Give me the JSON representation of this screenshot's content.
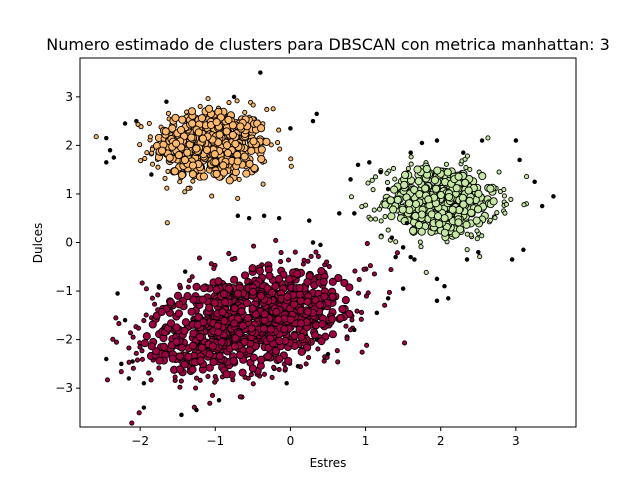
{
  "chart_data": {
    "type": "scatter",
    "title": "Numero estimado de clusters para DBSCAN con metrica manhattan: 3",
    "xlabel": "Estres",
    "ylabel": "Dulces",
    "xlim": [
      -2.8,
      3.8
    ],
    "ylim": [
      -3.8,
      3.8
    ],
    "xticks": [
      -2,
      -1,
      0,
      1,
      2,
      3
    ],
    "xtick_labels": [
      "−2",
      "−1",
      "0",
      "1",
      "2",
      "3"
    ],
    "yticks": [
      -3,
      -2,
      -1,
      0,
      1,
      2,
      3
    ],
    "ytick_labels": [
      "−3",
      "−2",
      "−1",
      "0",
      "1",
      "2",
      "3"
    ],
    "grid": false,
    "legend": "none",
    "clusters": [
      {
        "color": "#fdb96b",
        "center": [
          -1.05,
          2.0
        ],
        "spread": [
          0.38,
          0.38
        ],
        "count": 520,
        "core_size": 6,
        "border_size": 3
      },
      {
        "color": "#c7e8a5",
        "center": [
          2.0,
          0.85
        ],
        "spread": [
          0.38,
          0.38
        ],
        "count": 470,
        "core_size": 6,
        "border_size": 3
      },
      {
        "color": "#9e0142",
        "center": [
          -0.55,
          -1.6
        ],
        "spread": [
          0.75,
          0.5
        ],
        "count": 980,
        "core_size": 6,
        "border_size": 3,
        "rotation_deg": 30
      }
    ],
    "noise": {
      "color": "#000000",
      "size": 3,
      "points": [
        [
          -2.45,
          2.15
        ],
        [
          -2.4,
          1.9
        ],
        [
          -2.35,
          1.75
        ],
        [
          -2.2,
          2.45
        ],
        [
          -2.05,
          2.5
        ],
        [
          -2.45,
          1.65
        ],
        [
          -1.85,
          1.4
        ],
        [
          -1.65,
          2.9
        ],
        [
          0.0,
          2.35
        ],
        [
          0.35,
          2.65
        ],
        [
          0.3,
          2.5
        ],
        [
          -0.4,
          3.5
        ],
        [
          -0.15,
          0.5
        ],
        [
          -0.35,
          0.55
        ],
        [
          -0.55,
          0.5
        ],
        [
          -0.7,
          0.55
        ],
        [
          0.25,
          0.45
        ],
        [
          -0.75,
          3.0
        ],
        [
          0.65,
          0.6
        ],
        [
          0.85,
          0.6
        ],
        [
          1.05,
          1.65
        ],
        [
          0.9,
          1.6
        ],
        [
          0.8,
          1.3
        ],
        [
          1.2,
          1.45
        ],
        [
          1.3,
          1.1
        ],
        [
          1.55,
          0.4
        ],
        [
          1.75,
          2.05
        ],
        [
          1.95,
          2.1
        ],
        [
          1.6,
          1.85
        ],
        [
          2.3,
          1.85
        ],
        [
          2.55,
          2.1
        ],
        [
          3.0,
          2.1
        ],
        [
          3.05,
          1.7
        ],
        [
          3.25,
          1.25
        ],
        [
          3.35,
          0.75
        ],
        [
          3.5,
          0.95
        ],
        [
          1.35,
          0.1
        ],
        [
          1.5,
          -0.1
        ],
        [
          1.95,
          -0.75
        ],
        [
          2.05,
          -0.9
        ],
        [
          2.35,
          -0.35
        ],
        [
          2.5,
          -0.2
        ],
        [
          2.95,
          -0.35
        ],
        [
          3.1,
          -0.15
        ],
        [
          1.95,
          -1.2
        ],
        [
          2.1,
          -1.15
        ],
        [
          1.65,
          -0.35
        ],
        [
          0.3,
          0.0
        ],
        [
          0.4,
          -0.05
        ],
        [
          -1.4,
          -0.6
        ],
        [
          -1.75,
          -0.9
        ],
        [
          -2.3,
          -1.05
        ],
        [
          -2.2,
          -1.6
        ],
        [
          -2.45,
          -2.4
        ],
        [
          -2.25,
          -2.5
        ],
        [
          -2.1,
          -2.45
        ],
        [
          -2.15,
          -2.8
        ],
        [
          -1.95,
          -2.9
        ],
        [
          -1.95,
          -3.4
        ],
        [
          -1.45,
          -3.55
        ],
        [
          -1.25,
          -3.45
        ],
        [
          -0.95,
          -3.25
        ],
        [
          0.85,
          -1.8
        ],
        [
          1.15,
          -1.45
        ],
        [
          1.3,
          -1.15
        ],
        [
          1.5,
          -0.95
        ],
        [
          1.6,
          -0.3
        ],
        [
          0.35,
          -2.0
        ],
        [
          0.1,
          -2.55
        ],
        [
          0.5,
          -2.3
        ],
        [
          -0.05,
          -2.9
        ],
        [
          1.4,
          -0.3
        ]
      ]
    }
  }
}
